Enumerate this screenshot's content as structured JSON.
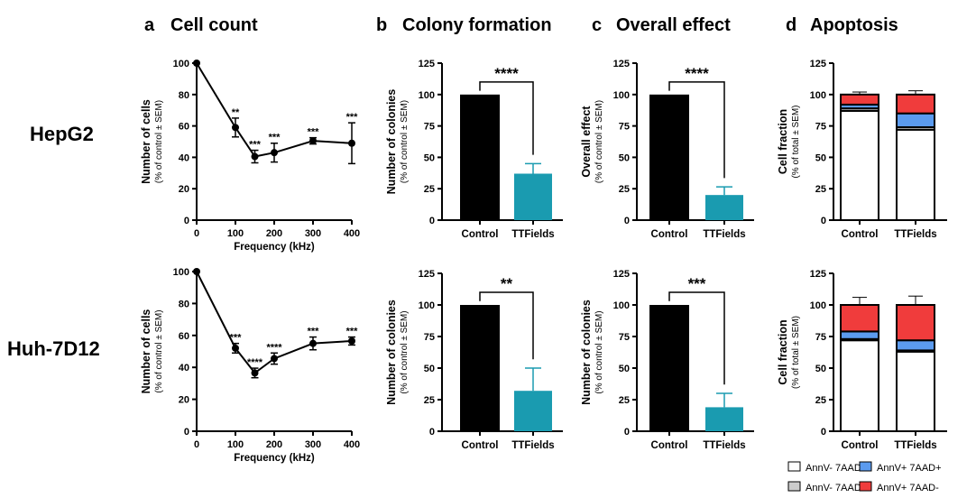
{
  "panel_titles": [
    {
      "letter": "a",
      "title": "Cell count"
    },
    {
      "letter": "b",
      "title": "Colony formation"
    },
    {
      "letter": "c",
      "title": "Overall effect"
    },
    {
      "letter": "d",
      "title": "Apoptosis"
    }
  ],
  "row_labels": [
    "HepG2",
    "Huh-7D12"
  ],
  "colors": {
    "bar_control": "#000000",
    "bar_ttfields": "#1a9bb0",
    "annv_neg_7aad_neg": "#ffffff",
    "annv_neg_7aad_pos": "#cccccc",
    "annv_pos_7aad_pos": "#5b9bef",
    "annv_pos_7aad_neg": "#f03c3c"
  },
  "legend": [
    {
      "label": "AnnV- 7AAD-",
      "color": "#ffffff"
    },
    {
      "label": "AnnV+ 7AAD+",
      "color": "#5b9bef"
    },
    {
      "label": "AnnV- 7AAD+",
      "color": "#cccccc"
    },
    {
      "label": "AnnV+ 7AAD-",
      "color": "#f03c3c"
    }
  ],
  "chart_data": [
    {
      "id": "a-hepg2",
      "type": "line",
      "title": "",
      "xlabel": "Frequency (kHz)",
      "ylabel": "Number of cells",
      "ylabel_sub": "(% of control ± SEM)",
      "xlim": [
        0,
        400
      ],
      "ylim": [
        0,
        100
      ],
      "xticks": [
        0,
        100,
        200,
        300,
        400
      ],
      "yticks": [
        0,
        20,
        40,
        60,
        80,
        100
      ],
      "x": [
        0,
        100,
        150,
        200,
        300,
        400
      ],
      "y": [
        100,
        59,
        40.5,
        43,
        50.5,
        49
      ],
      "err": [
        0,
        6,
        4,
        6,
        2,
        13
      ],
      "sig": [
        "",
        "**",
        "***",
        "***",
        "***",
        "***"
      ]
    },
    {
      "id": "a-huh",
      "type": "line",
      "title": "",
      "xlabel": "Frequency (kHz)",
      "ylabel": "Number of cells",
      "ylabel_sub": "(% of control ± SEM)",
      "xlim": [
        0,
        400
      ],
      "ylim": [
        0,
        100
      ],
      "xticks": [
        0,
        100,
        200,
        300,
        400
      ],
      "yticks": [
        0,
        20,
        40,
        60,
        80,
        100
      ],
      "x": [
        0,
        100,
        150,
        200,
        300,
        400
      ],
      "y": [
        100,
        52,
        36.5,
        45.5,
        55,
        56.5
      ],
      "err": [
        0,
        3,
        3,
        3.5,
        4,
        2.5
      ],
      "sig": [
        "",
        "***",
        "****",
        "****",
        "***",
        "***"
      ]
    },
    {
      "id": "b-hepg2",
      "type": "bar",
      "title": "",
      "ylabel": "Number of colonies",
      "ylabel_sub": "(% of control ± SEM)",
      "ylim": [
        0,
        125
      ],
      "yticks": [
        0,
        25,
        50,
        75,
        100,
        125
      ],
      "categories": [
        "Control",
        "TTFields"
      ],
      "values": [
        100,
        37
      ],
      "err": [
        0,
        8
      ],
      "sig": "****"
    },
    {
      "id": "b-huh",
      "type": "bar",
      "title": "",
      "ylabel": "Number of colonies",
      "ylabel_sub": "(% of control ± SEM)",
      "ylim": [
        0,
        125
      ],
      "yticks": [
        0,
        25,
        50,
        75,
        100,
        125
      ],
      "categories": [
        "Control",
        "TTFields"
      ],
      "values": [
        100,
        32
      ],
      "err": [
        0,
        18
      ],
      "sig": "**"
    },
    {
      "id": "c-hepg2",
      "type": "bar",
      "title": "",
      "ylabel": "Overall effect",
      "ylabel_sub": "(% of control ± SEM)",
      "ylim": [
        0,
        125
      ],
      "yticks": [
        0,
        25,
        50,
        75,
        100,
        125
      ],
      "categories": [
        "Control",
        "TTFields"
      ],
      "values": [
        100,
        20
      ],
      "err": [
        0,
        6.5
      ],
      "sig": "****"
    },
    {
      "id": "c-huh",
      "type": "bar",
      "title": "",
      "ylabel": "Number of colonies",
      "ylabel_sub": "(% of control ± SEM)",
      "ylim": [
        0,
        125
      ],
      "yticks": [
        0,
        25,
        50,
        75,
        100,
        125
      ],
      "categories": [
        "Control",
        "TTFields"
      ],
      "values": [
        100,
        19
      ],
      "err": [
        0,
        11
      ],
      "sig": "***"
    },
    {
      "id": "d-hepg2",
      "type": "bar",
      "stacked": true,
      "title": "",
      "ylabel": "Cell fraction",
      "ylabel_sub": "(% of total ± SEM)",
      "ylim": [
        0,
        125
      ],
      "yticks": [
        0,
        25,
        50,
        75,
        100,
        125
      ],
      "categories": [
        "Control",
        "TTFields"
      ],
      "series": [
        {
          "name": "AnnV- 7AAD-",
          "values": [
            87,
            72
          ]
        },
        {
          "name": "AnnV- 7AAD+",
          "values": [
            2,
            2
          ]
        },
        {
          "name": "AnnV+ 7AAD+",
          "values": [
            3,
            11
          ]
        },
        {
          "name": "AnnV+ 7AAD-",
          "values": [
            8,
            15
          ]
        }
      ],
      "err": [
        [
          1.5,
          2.5
        ],
        [
          1,
          1.5
        ],
        [
          1,
          2
        ],
        [
          2,
          3
        ]
      ]
    },
    {
      "id": "d-huh",
      "type": "bar",
      "stacked": true,
      "title": "",
      "ylabel": "Cell fraction",
      "ylabel_sub": "(% of total ± SEM)",
      "ylim": [
        0,
        125
      ],
      "yticks": [
        0,
        25,
        50,
        75,
        100,
        125
      ],
      "categories": [
        "Control",
        "TTFields"
      ],
      "series": [
        {
          "name": "AnnV- 7AAD-",
          "values": [
            72,
            63
          ]
        },
        {
          "name": "AnnV- 7AAD+",
          "values": [
            1,
            1
          ]
        },
        {
          "name": "AnnV+ 7AAD+",
          "values": [
            6,
            8
          ]
        },
        {
          "name": "AnnV+ 7AAD-",
          "values": [
            21,
            28
          ]
        }
      ],
      "err": [
        [
          1.5,
          2
        ],
        [
          0.5,
          0.5
        ],
        [
          2,
          2.5
        ],
        [
          6,
          7
        ]
      ]
    }
  ]
}
